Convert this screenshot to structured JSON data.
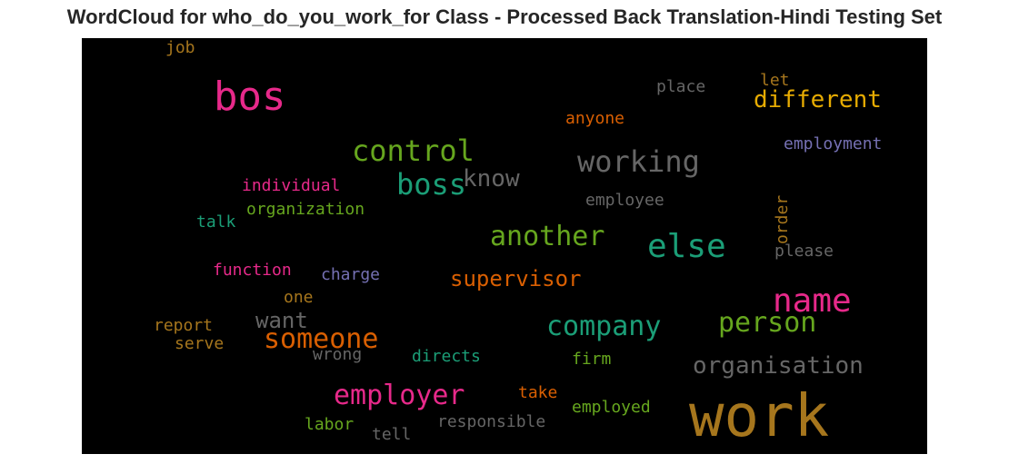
{
  "title": "WordCloud for who_do_you_work_for Class - Processed Back Translation-Hindi Testing Set",
  "chart_data": {
    "type": "wordcloud",
    "title": "WordCloud for who_do_you_work_for Class - Processed Back Translation-Hindi Testing Set",
    "background": "#000000",
    "words": [
      {
        "text": "work",
        "size": 64,
        "color": "#a6761d"
      },
      {
        "text": "bos",
        "size": 44,
        "color": "#e7298a"
      },
      {
        "text": "name",
        "size": 36,
        "color": "#e7298a"
      },
      {
        "text": "else",
        "size": 36,
        "color": "#1b9e77"
      },
      {
        "text": "boss",
        "size": 32,
        "color": "#1b9e77"
      },
      {
        "text": "control",
        "size": 32,
        "color": "#66a61e"
      },
      {
        "text": "working",
        "size": 32,
        "color": "#666666"
      },
      {
        "text": "another",
        "size": 30,
        "color": "#66a61e"
      },
      {
        "text": "company",
        "size": 30,
        "color": "#1b9e77"
      },
      {
        "text": "employer",
        "size": 30,
        "color": "#e7298a"
      },
      {
        "text": "someone",
        "size": 30,
        "color": "#d95f02"
      },
      {
        "text": "person",
        "size": 30,
        "color": "#66a61e"
      },
      {
        "text": "different",
        "size": 26,
        "color": "#e6ab02"
      },
      {
        "text": "know",
        "size": 26,
        "color": "#666666"
      },
      {
        "text": "organisation",
        "size": 26,
        "color": "#666666"
      },
      {
        "text": "supervisor",
        "size": 24,
        "color": "#d95f02"
      },
      {
        "text": "want",
        "size": 24,
        "color": "#666666"
      },
      {
        "text": "employment",
        "size": 18,
        "color": "#7570b3"
      },
      {
        "text": "employee",
        "size": 18,
        "color": "#666666"
      },
      {
        "text": "place",
        "size": 18,
        "color": "#666666"
      },
      {
        "text": "let",
        "size": 18,
        "color": "#a6761d"
      },
      {
        "text": "anyone",
        "size": 18,
        "color": "#d95f02"
      },
      {
        "text": "individual",
        "size": 18,
        "color": "#e7298a"
      },
      {
        "text": "organization",
        "size": 18,
        "color": "#66a61e"
      },
      {
        "text": "talk",
        "size": 18,
        "color": "#1b9e77"
      },
      {
        "text": "job",
        "size": 18,
        "color": "#a6761d"
      },
      {
        "text": "function",
        "size": 18,
        "color": "#e7298a"
      },
      {
        "text": "charge",
        "size": 18,
        "color": "#7570b3"
      },
      {
        "text": "one",
        "size": 18,
        "color": "#a6761d"
      },
      {
        "text": "report",
        "size": 18,
        "color": "#a6761d"
      },
      {
        "text": "serve",
        "size": 18,
        "color": "#a6761d"
      },
      {
        "text": "wrong",
        "size": 18,
        "color": "#666666"
      },
      {
        "text": "directs",
        "size": 18,
        "color": "#1b9e77"
      },
      {
        "text": "firm",
        "size": 18,
        "color": "#66a61e"
      },
      {
        "text": "take",
        "size": 18,
        "color": "#d95f02"
      },
      {
        "text": "employed",
        "size": 18,
        "color": "#66a61e"
      },
      {
        "text": "responsible",
        "size": 18,
        "color": "#666666"
      },
      {
        "text": "labor",
        "size": 18,
        "color": "#66a61e"
      },
      {
        "text": "tell",
        "size": 18,
        "color": "#666666"
      },
      {
        "text": "please",
        "size": 18,
        "color": "#666666"
      },
      {
        "text": "order",
        "size": 18,
        "color": "#a6761d"
      }
    ]
  }
}
